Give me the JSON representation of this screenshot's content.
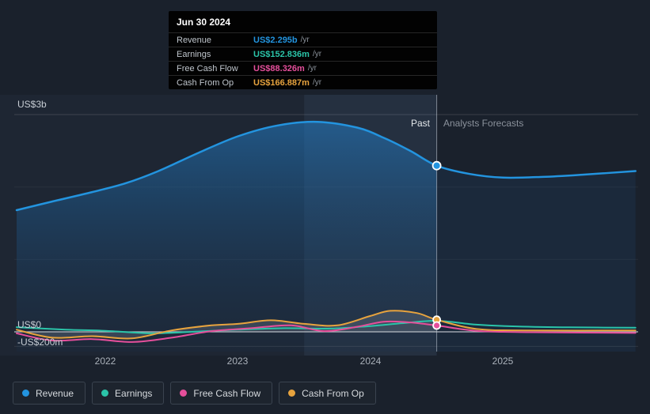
{
  "tooltip": {
    "title": "Jun 30 2024",
    "rows": [
      {
        "label": "Revenue",
        "value": "US$2.295b",
        "unit": "/yr",
        "color": "#2394df"
      },
      {
        "label": "Earnings",
        "value": "US$152.836m",
        "unit": "/yr",
        "color": "#2bc4a9"
      },
      {
        "label": "Free Cash Flow",
        "value": "US$88.326m",
        "unit": "/yr",
        "color": "#e54f9b"
      },
      {
        "label": "Cash From Op",
        "value": "US$166.887m",
        "unit": "/yr",
        "color": "#e7a33e"
      }
    ]
  },
  "axis": {
    "y_top": "US$3b",
    "y_zero": "US$0",
    "y_neg": "-US$200m",
    "x_ticks": [
      "2022",
      "2023",
      "2024",
      "2025"
    ]
  },
  "annotations": {
    "past": "Past",
    "forecast": "Analysts Forecasts"
  },
  "legend": {
    "items": [
      {
        "label": "Revenue",
        "color": "#2394df"
      },
      {
        "label": "Earnings",
        "color": "#2bc4a9"
      },
      {
        "label": "Free Cash Flow",
        "color": "#e54f9b"
      },
      {
        "label": "Cash From Op",
        "color": "#e7a33e"
      }
    ]
  },
  "chart_data": {
    "type": "area",
    "title": "",
    "x_domain": [
      2021.33,
      2026.02
    ],
    "ylim": [
      -0.327,
      3.273
    ],
    "y_units": "US$ billions",
    "x_tick_values": [
      2022,
      2023,
      2024,
      2025
    ],
    "y_gridline_values": [
      3,
      2,
      1,
      0,
      -0.2
    ],
    "divider_x": 2024.5,
    "divider_date": "Jun 30 2024",
    "highlight_band": [
      2023.5,
      2024.5
    ],
    "legend_position": "bottom",
    "series": [
      {
        "name": "Revenue",
        "color": "#2394df",
        "area": "blue",
        "points": [
          [
            2021.33,
            1.68
          ],
          [
            2021.6,
            1.8
          ],
          [
            2021.9,
            1.93
          ],
          [
            2022.15,
            2.05
          ],
          [
            2022.4,
            2.22
          ],
          [
            2022.7,
            2.47
          ],
          [
            2023.0,
            2.7
          ],
          [
            2023.3,
            2.85
          ],
          [
            2023.6,
            2.9
          ],
          [
            2023.9,
            2.82
          ],
          [
            2024.1,
            2.68
          ],
          [
            2024.3,
            2.5
          ],
          [
            2024.5,
            2.295
          ],
          [
            2024.75,
            2.18
          ],
          [
            2025.0,
            2.13
          ],
          [
            2025.3,
            2.14
          ],
          [
            2025.6,
            2.17
          ],
          [
            2026.0,
            2.22
          ]
        ]
      },
      {
        "name": "Earnings",
        "color": "#2bc4a9",
        "area": "none",
        "points": [
          [
            2021.33,
            0.065
          ],
          [
            2021.7,
            0.03
          ],
          [
            2022.0,
            0.015
          ],
          [
            2022.35,
            -0.02
          ],
          [
            2022.7,
            0.005
          ],
          [
            2023.0,
            0.03
          ],
          [
            2023.35,
            0.05
          ],
          [
            2023.7,
            0.045
          ],
          [
            2024.0,
            0.08
          ],
          [
            2024.25,
            0.12
          ],
          [
            2024.5,
            0.1528
          ],
          [
            2024.8,
            0.1
          ],
          [
            2025.1,
            0.075
          ],
          [
            2025.5,
            0.062
          ],
          [
            2026.0,
            0.058
          ]
        ]
      },
      {
        "name": "Free Cash Flow",
        "color": "#e54f9b",
        "area": "none",
        "points": [
          [
            2021.33,
            -0.02
          ],
          [
            2021.6,
            -0.12
          ],
          [
            2021.9,
            -0.1
          ],
          [
            2022.2,
            -0.14
          ],
          [
            2022.5,
            -0.08
          ],
          [
            2022.8,
            0.01
          ],
          [
            2023.1,
            0.05
          ],
          [
            2023.4,
            0.09
          ],
          [
            2023.65,
            0.01
          ],
          [
            2023.9,
            0.07
          ],
          [
            2024.1,
            0.14
          ],
          [
            2024.3,
            0.13
          ],
          [
            2024.5,
            0.088
          ],
          [
            2024.8,
            0.015
          ],
          [
            2025.2,
            -0.005
          ],
          [
            2026.0,
            -0.015
          ]
        ]
      },
      {
        "name": "Cash From Op",
        "color": "#e7a33e",
        "area": "gray",
        "points": [
          [
            2021.33,
            0.03
          ],
          [
            2021.6,
            -0.08
          ],
          [
            2021.9,
            -0.06
          ],
          [
            2022.2,
            -0.09
          ],
          [
            2022.5,
            0.02
          ],
          [
            2022.8,
            0.09
          ],
          [
            2023.0,
            0.11
          ],
          [
            2023.25,
            0.16
          ],
          [
            2023.5,
            0.11
          ],
          [
            2023.75,
            0.09
          ],
          [
            2024.0,
            0.22
          ],
          [
            2024.15,
            0.29
          ],
          [
            2024.35,
            0.26
          ],
          [
            2024.5,
            0.167
          ],
          [
            2024.8,
            0.04
          ],
          [
            2025.2,
            0.02
          ],
          [
            2026.0,
            0.02
          ]
        ]
      }
    ],
    "markers": [
      {
        "series": "Revenue",
        "t": 2024.5,
        "v": 2.295,
        "color": "#2394df",
        "r": 5
      },
      {
        "series": "Cash From Op",
        "t": 2024.5,
        "v": 0.167,
        "color": "#e7a33e",
        "r": 4.5
      },
      {
        "series": "Free Cash Flow",
        "t": 2024.5,
        "v": 0.088,
        "color": "#e54f9b",
        "r": 4.5
      }
    ]
  }
}
